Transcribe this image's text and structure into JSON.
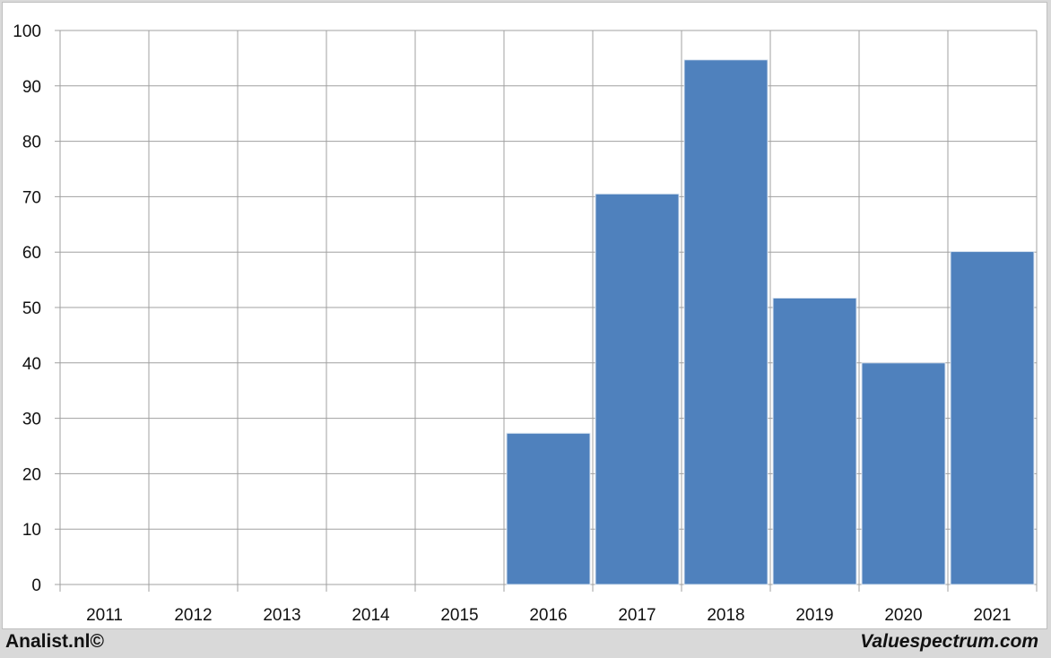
{
  "chart_data": {
    "type": "bar",
    "categories": [
      "2011",
      "2012",
      "2013",
      "2014",
      "2015",
      "2016",
      "2017",
      "2018",
      "2019",
      "2020",
      "2021"
    ],
    "values": [
      null,
      null,
      null,
      null,
      null,
      27.3,
      70.5,
      94.7,
      51.7,
      40.0,
      60.1
    ],
    "title": "",
    "xlabel": "",
    "ylabel": "",
    "ylim": [
      0,
      100
    ],
    "yticks": [
      0,
      10,
      20,
      30,
      40,
      50,
      60,
      70,
      80,
      90,
      100
    ],
    "grid": true,
    "bar_color": "#4f81bd"
  },
  "footer": {
    "left": "Analist.nl©",
    "right": "Valuespectrum.com"
  }
}
